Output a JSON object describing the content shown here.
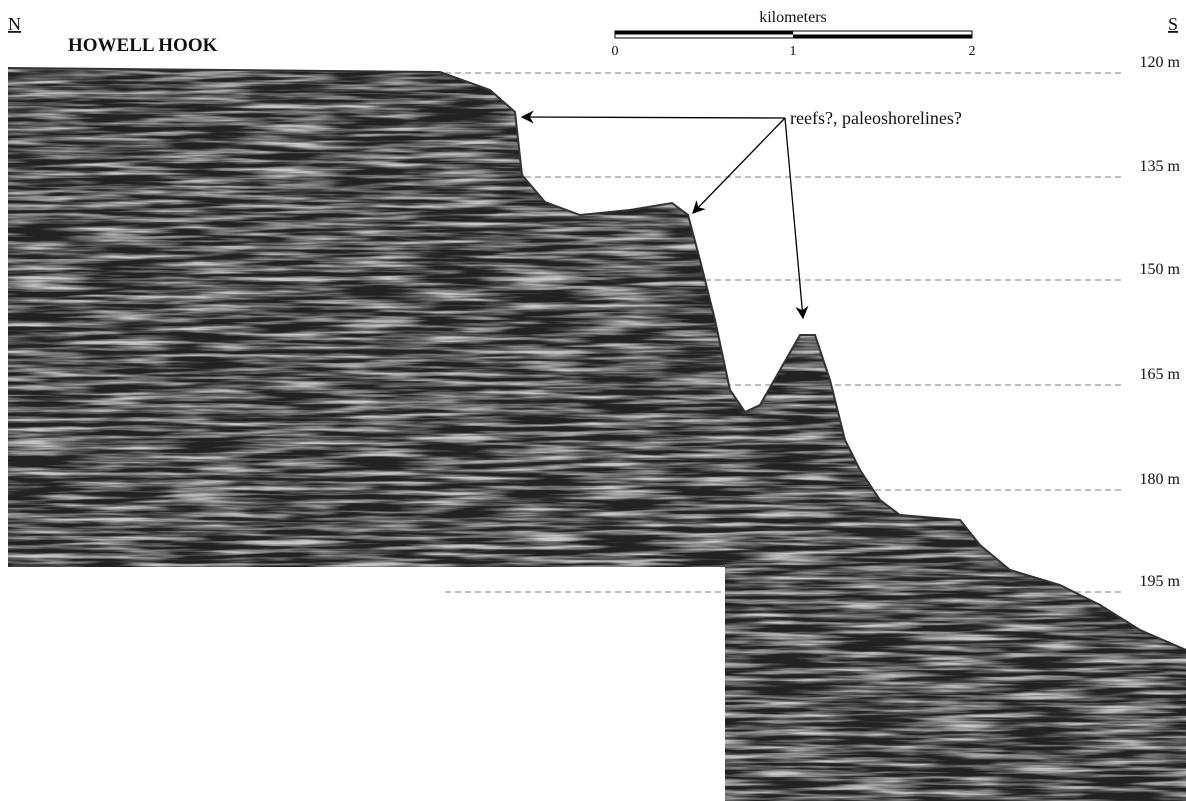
{
  "header": {
    "north": "N",
    "south": "S",
    "title": "HOWELL HOOK"
  },
  "scale_bar": {
    "label": "kilometers",
    "ticks": [
      "0",
      "1",
      "2"
    ]
  },
  "depth_labels": [
    "120 m",
    "135 m",
    "150 m",
    "165 m",
    "180 m",
    "195 m"
  ],
  "annotation": "reefs?, paleoshorelines?"
}
